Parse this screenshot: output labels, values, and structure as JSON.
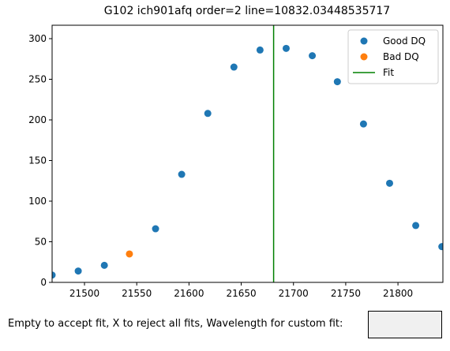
{
  "chart_data": {
    "type": "scatter",
    "title": "G102 ich901afq order=2 line=10832.03448535717",
    "series": [
      {
        "name": "Good DQ",
        "color": "#1f77b4",
        "x": [
          21469,
          21494,
          21519,
          21568,
          21593,
          21618,
          21643,
          21668,
          21693,
          21718,
          21742,
          21767,
          21792,
          21817,
          21842
        ],
        "values": [
          9,
          14,
          21,
          66,
          133,
          208,
          265,
          286,
          288,
          279,
          247,
          195,
          122,
          70,
          44
        ]
      },
      {
        "name": "Bad DQ",
        "color": "#ff7f0e",
        "x": [
          21543
        ],
        "values": [
          35
        ]
      }
    ],
    "fit_line": {
      "name": "Fit",
      "color": "#008000",
      "x": 21681
    },
    "xlim": [
      21469,
      21843
    ],
    "ylim": [
      0,
      316.5
    ],
    "xticks": [
      21500,
      21550,
      21600,
      21650,
      21700,
      21750,
      21800
    ],
    "yticks": [
      0,
      50,
      100,
      150,
      200,
      250,
      300
    ],
    "legend": "upper right"
  },
  "input": {
    "label": "Empty to accept fit, X to reject all fits, Wavelength for custom fit:"
  }
}
